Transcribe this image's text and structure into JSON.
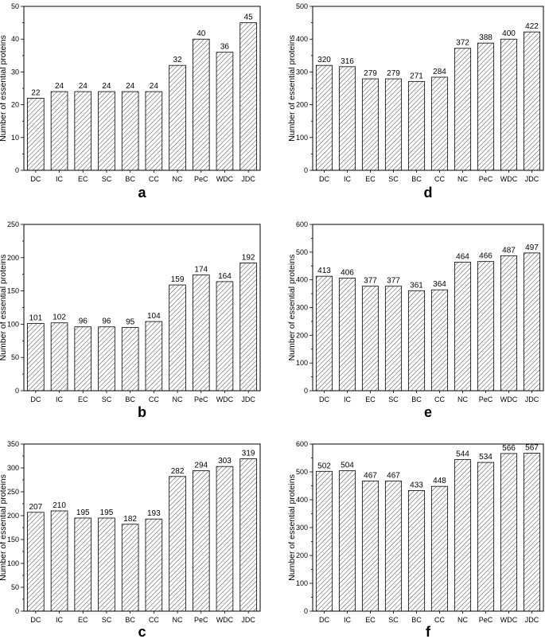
{
  "chart_data": [
    {
      "type": "bar",
      "panel_label": "a",
      "categories": [
        "DC",
        "IC",
        "EC",
        "SC",
        "BC",
        "CC",
        "NC",
        "PeC",
        "WDC",
        "JDC"
      ],
      "values": [
        22,
        24,
        24,
        24,
        24,
        24,
        32,
        40,
        36,
        45
      ],
      "ylabel": "Number of essential proteins",
      "ylim": [
        0,
        50
      ],
      "yticks": [
        0,
        10,
        20,
        30,
        40,
        50
      ],
      "bar_fill": "hatched",
      "grid": false
    },
    {
      "type": "bar",
      "panel_label": "d",
      "categories": [
        "DC",
        "IC",
        "EC",
        "SC",
        "BC",
        "CC",
        "NC",
        "PeC",
        "WDC",
        "JDC"
      ],
      "values": [
        320,
        316,
        279,
        279,
        271,
        284,
        372,
        388,
        400,
        422
      ],
      "ylabel": "Number of essential proteins",
      "ylim": [
        0,
        500
      ],
      "yticks": [
        0,
        100,
        200,
        300,
        400,
        500
      ],
      "bar_fill": "hatched",
      "grid": false
    },
    {
      "type": "bar",
      "panel_label": "b",
      "categories": [
        "DC",
        "IC",
        "EC",
        "SC",
        "BC",
        "CC",
        "NC",
        "PeC",
        "WDC",
        "JDC"
      ],
      "values": [
        101,
        102,
        96,
        96,
        95,
        104,
        159,
        174,
        164,
        192
      ],
      "ylabel": "Number of essential proteins",
      "ylim": [
        0,
        250
      ],
      "yticks": [
        0,
        50,
        100,
        150,
        200,
        250
      ],
      "bar_fill": "hatched",
      "grid": false
    },
    {
      "type": "bar",
      "panel_label": "e",
      "categories": [
        "DC",
        "IC",
        "EC",
        "SC",
        "BC",
        "CC",
        "NC",
        "PeC",
        "WDC",
        "JDC"
      ],
      "values": [
        413,
        406,
        377,
        377,
        361,
        364,
        464,
        466,
        487,
        497
      ],
      "ylabel": "Number of essential proteins",
      "ylim": [
        0,
        600
      ],
      "yticks": [
        0,
        100,
        200,
        300,
        400,
        500,
        600
      ],
      "bar_fill": "hatched",
      "grid": false
    },
    {
      "type": "bar",
      "panel_label": "c",
      "categories": [
        "DC",
        "IC",
        "EC",
        "SC",
        "BC",
        "CC",
        "NC",
        "PeC",
        "WDC",
        "JDC"
      ],
      "values": [
        207,
        210,
        195,
        195,
        182,
        193,
        282,
        294,
        303,
        319
      ],
      "ylabel": "Number of essential proteins",
      "ylim": [
        0,
        350
      ],
      "yticks": [
        0,
        50,
        100,
        150,
        200,
        250,
        300,
        350
      ],
      "bar_fill": "hatched",
      "grid": false
    },
    {
      "type": "bar",
      "panel_label": "f",
      "categories": [
        "DC",
        "IC",
        "EC",
        "SC",
        "BC",
        "CC",
        "NC",
        "PeC",
        "WDC",
        "JDC"
      ],
      "values": [
        502,
        504,
        467,
        467,
        433,
        448,
        544,
        534,
        566,
        567
      ],
      "ylabel": "Number of essential proteins",
      "ylim": [
        0,
        600
      ],
      "yticks": [
        0,
        100,
        200,
        300,
        400,
        500,
        600
      ],
      "bar_fill": "hatched",
      "grid": false
    }
  ]
}
